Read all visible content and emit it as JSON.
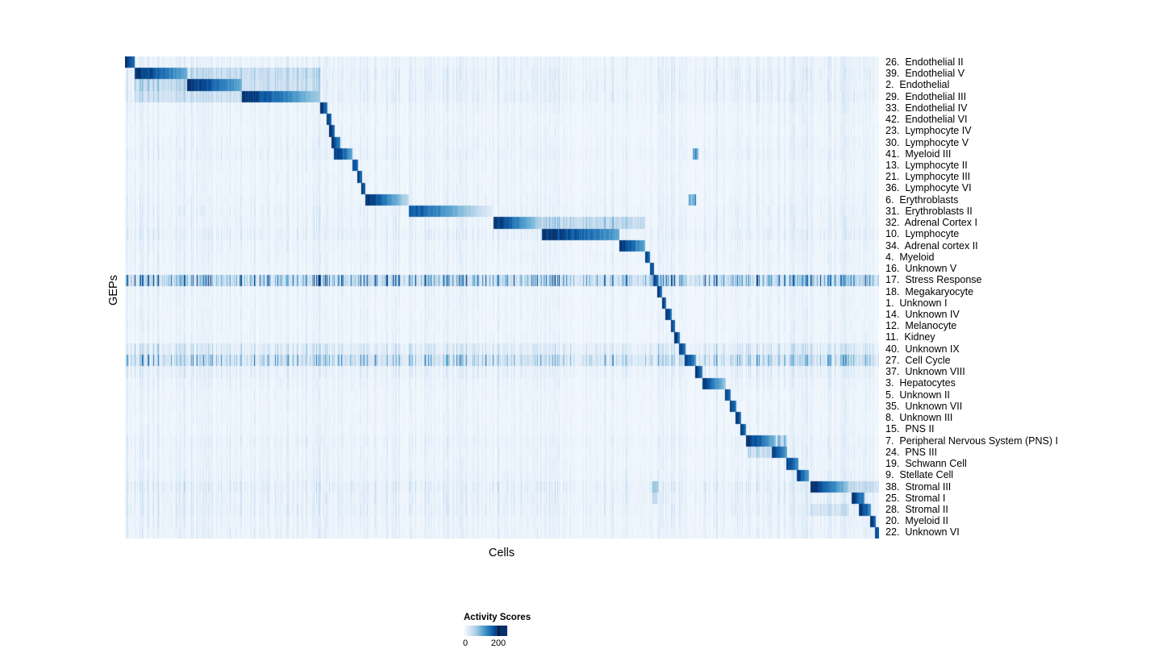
{
  "chart_data": {
    "type": "heatmap",
    "title": "",
    "xlabel": "Cells",
    "ylabel": "GEPs",
    "colorbar": {
      "label": "Activity Scores",
      "min": 0,
      "max": 200,
      "min_label": "0",
      "max_label": "200",
      "palette": [
        "#f7fbff",
        "#deebf7",
        "#c6dbef",
        "#9ecae1",
        "#6baed6",
        "#4292c6",
        "#2171b5",
        "#08519c",
        "#08306b"
      ]
    },
    "n_rows": 42,
    "rows": [
      {
        "label": "26.  Endothelial II",
        "block": [
          0.0,
          0.012
        ],
        "fade": 0.25,
        "noise": 0.08
      },
      {
        "label": "39.  Endothelial V",
        "block": [
          0.012,
          0.082
        ],
        "fade": 0.5,
        "noise": 0.1,
        "bands": [
          [
            0.082,
            0.259,
            0.28
          ]
        ]
      },
      {
        "label": "2.  Endothelial",
        "block": [
          0.082,
          0.155
        ],
        "fade": 0.5,
        "noise": 0.1,
        "bands": [
          [
            0.012,
            0.082,
            0.3
          ],
          [
            0.155,
            0.259,
            0.26
          ]
        ]
      },
      {
        "label": "29.  Endothelial III",
        "block": [
          0.155,
          0.259
        ],
        "fade": 0.65,
        "noise": 0.1,
        "bands": [
          [
            0.012,
            0.155,
            0.24
          ]
        ]
      },
      {
        "label": "33.  Endothelial IV",
        "block": [
          0.259,
          0.268
        ],
        "fade": 0.25,
        "noise": 0.07
      },
      {
        "label": "42.  Endothelial VI",
        "block": [
          0.267,
          0.274
        ],
        "fade": 0.25,
        "noise": 0.06
      },
      {
        "label": "23.  Lymphocyte IV",
        "block": [
          0.27,
          0.278
        ],
        "fade": 0.25,
        "noise": 0.06
      },
      {
        "label": "30.  Lymphocyte V",
        "block": [
          0.274,
          0.285
        ],
        "fade": 0.3,
        "noise": 0.07
      },
      {
        "label": "41.  Myeloid III",
        "block": [
          0.277,
          0.301
        ],
        "fade": 0.45,
        "noise": 0.08,
        "bands": [
          [
            0.753,
            0.761,
            0.75
          ]
        ]
      },
      {
        "label": "13.  Lymphocyte II",
        "block": [
          0.301,
          0.309
        ],
        "fade": 0.25,
        "noise": 0.06
      },
      {
        "label": "21.  Lymphocyte III",
        "block": [
          0.308,
          0.314
        ],
        "fade": 0.25,
        "noise": 0.06
      },
      {
        "label": "36.  Lymphocyte VI",
        "block": [
          0.313,
          0.319
        ],
        "fade": 0.25,
        "noise": 0.06
      },
      {
        "label": "6.  Erythroblasts",
        "block": [
          0.319,
          0.376
        ],
        "fade": 0.75,
        "noise": 0.07,
        "bands": [
          [
            0.748,
            0.757,
            0.75
          ]
        ]
      },
      {
        "label": "31.  Erythroblasts II",
        "block": [
          0.376,
          0.489
        ],
        "peak": 0.88,
        "fade": 0.9,
        "noise": 0.08
      },
      {
        "label": "32.  Adrenal Cortex I",
        "block": [
          0.489,
          0.551
        ],
        "fade": 0.7,
        "noise": 0.08,
        "bands": [
          [
            0.551,
            0.69,
            0.35
          ]
        ]
      },
      {
        "label": "10.  Lymphocyte",
        "block": [
          0.553,
          0.656
        ],
        "fade": 0.45,
        "noise": 0.1
      },
      {
        "label": "34.  Adrenal cortex II",
        "block": [
          0.656,
          0.69
        ],
        "fade": 0.5,
        "noise": 0.07
      },
      {
        "label": "4.  Myeloid",
        "block": [
          0.69,
          0.697
        ],
        "fade": 0.25,
        "noise": 0.07
      },
      {
        "label": "16.  Unknown V",
        "block": [
          0.696,
          0.702
        ],
        "fade": 0.25,
        "noise": 0.06
      },
      {
        "label": "17.  Stress Response",
        "block": [
          0.701,
          0.707
        ],
        "fade": 0.25,
        "noise": 0.5
      },
      {
        "label": "18.  Megakaryocyte",
        "block": [
          0.706,
          0.712
        ],
        "fade": 0.25,
        "noise": 0.06
      },
      {
        "label": "1.  Unknown I",
        "block": [
          0.712,
          0.718
        ],
        "fade": 0.25,
        "noise": 0.06
      },
      {
        "label": "14.  Unknown IV",
        "block": [
          0.717,
          0.725
        ],
        "fade": 0.25,
        "noise": 0.06
      },
      {
        "label": "12.  Melanocyte",
        "block": [
          0.724,
          0.73
        ],
        "fade": 0.25,
        "noise": 0.06
      },
      {
        "label": "11.  Kidney",
        "block": [
          0.729,
          0.736
        ],
        "fade": 0.25,
        "noise": 0.06
      },
      {
        "label": "40.  Unknown IX",
        "block": [
          0.735,
          0.744
        ],
        "fade": 0.3,
        "noise": 0.17
      },
      {
        "label": "27.  Cell Cycle",
        "block": [
          0.743,
          0.757
        ],
        "fade": 0.4,
        "noise": 0.33
      },
      {
        "label": "37.  Unknown VIII",
        "block": [
          0.756,
          0.766
        ],
        "fade": 0.3,
        "noise": 0.1
      },
      {
        "label": "3.  Hepatocytes",
        "block": [
          0.766,
          0.797
        ],
        "fade": 0.65,
        "noise": 0.07
      },
      {
        "label": "5.  Unknown II",
        "block": [
          0.796,
          0.803
        ],
        "fade": 0.25,
        "noise": 0.06
      },
      {
        "label": "35.  Unknown VII",
        "block": [
          0.802,
          0.811
        ],
        "fade": 0.3,
        "noise": 0.06
      },
      {
        "label": "8.  Unknown III",
        "block": [
          0.81,
          0.817
        ],
        "fade": 0.25,
        "noise": 0.06
      },
      {
        "label": "15.  PNS II",
        "block": [
          0.816,
          0.824
        ],
        "fade": 0.25,
        "noise": 0.06
      },
      {
        "label": "7.  Peripheral Nervous System (PNS) I",
        "block": [
          0.824,
          0.864
        ],
        "fade": 0.55,
        "noise": 0.08,
        "bands": [
          [
            0.865,
            0.879,
            0.4
          ]
        ]
      },
      {
        "label": "24.  PNS III",
        "block": [
          0.858,
          0.878
        ],
        "fade": 0.45,
        "noise": 0.07,
        "bands": [
          [
            0.826,
            0.857,
            0.28
          ]
        ]
      },
      {
        "label": "19.  Schwann Cell",
        "block": [
          0.877,
          0.894
        ],
        "fade": 0.4,
        "noise": 0.07
      },
      {
        "label": "9.  Stellate Cell",
        "block": [
          0.891,
          0.907
        ],
        "fade": 0.4,
        "noise": 0.08
      },
      {
        "label": "38.  Stromal III",
        "block": [
          0.91,
          0.959
        ],
        "fade": 0.6,
        "noise": 0.12,
        "bands": [
          [
            0.7,
            0.707,
            0.55
          ],
          [
            0.959,
            1.0,
            0.28
          ]
        ]
      },
      {
        "label": "25.  Stromal I",
        "block": [
          0.964,
          0.981
        ],
        "fade": 0.35,
        "noise": 0.1,
        "bands": [
          [
            0.7,
            0.706,
            0.4
          ]
        ]
      },
      {
        "label": "28.  Stromal II",
        "block": [
          0.974,
          0.99
        ],
        "fade": 0.35,
        "noise": 0.1,
        "bands": [
          [
            0.91,
            0.96,
            0.22
          ]
        ]
      },
      {
        "label": "20.  Myeloid II",
        "block": [
          0.989,
          0.996
        ],
        "fade": 0.25,
        "noise": 0.08
      },
      {
        "label": "22.  Unknown VI",
        "block": [
          0.995,
          1.0
        ],
        "fade": 0.2,
        "noise": 0.08
      }
    ]
  }
}
